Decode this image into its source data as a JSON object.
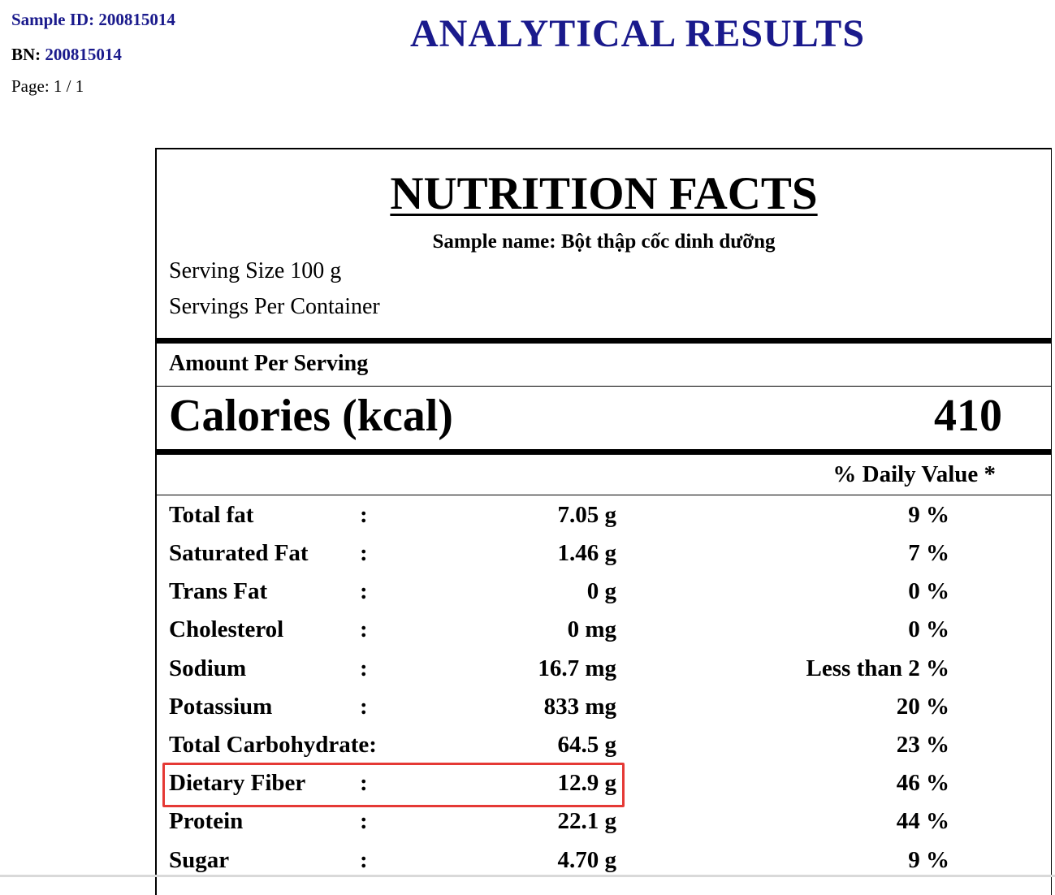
{
  "header": {
    "sample_id_label": "Sample ID:",
    "sample_id": "200815014",
    "bn_label": "BN:",
    "bn": "200815014",
    "page": "Page: 1 / 1",
    "title": "ANALYTICAL RESULTS"
  },
  "label": {
    "title": "NUTRITION FACTS",
    "sample_name": "Sample name: Bột thập cốc dinh dưỡng",
    "serving_size": "Serving Size 100 g",
    "servings_per_container": "Servings Per Container",
    "amount_per_serving": "Amount Per Serving",
    "calories_label": "Calories (kcal)",
    "calories_value": "410",
    "dv_header": "% Daily Value *"
  },
  "nutrients": [
    {
      "name": "Total fat",
      "colon": ":",
      "amount": "7.05 g",
      "dv": "9 %"
    },
    {
      "name": "Saturated Fat",
      "colon": ":",
      "amount": "1.46 g",
      "dv": "7 %"
    },
    {
      "name": "Trans Fat",
      "colon": ":",
      "amount": "0 g",
      "dv": "0 %"
    },
    {
      "name": "Cholesterol",
      "colon": ":",
      "amount": "0 mg",
      "dv": "0 %"
    },
    {
      "name": "Sodium",
      "colon": ":",
      "amount": "16.7 mg",
      "dv": "Less than 2 %"
    },
    {
      "name": "Potassium",
      "colon": ":",
      "amount": "833 mg",
      "dv": "20 %"
    },
    {
      "name": "Total Carbohydrate:",
      "colon": "",
      "amount": "64.5 g",
      "dv": "23 %"
    },
    {
      "name": "Dietary Fiber",
      "colon": ":",
      "amount": "12.9 g",
      "dv": "46 %"
    },
    {
      "name": "Protein",
      "colon": ":",
      "amount": "22.1 g",
      "dv": "44 %"
    },
    {
      "name": "Sugar",
      "colon": ":",
      "amount": "4.70 g",
      "dv": "9 %"
    }
  ],
  "colors": {
    "header_blue": "#1a1a8c",
    "highlight": "#e53935"
  }
}
